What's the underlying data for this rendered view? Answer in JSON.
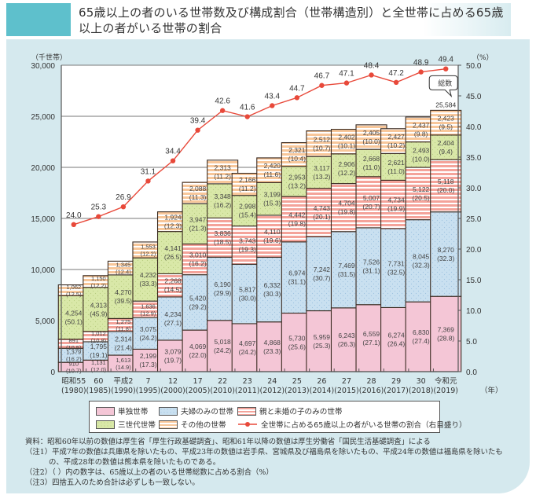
{
  "header": {
    "title_line1": "65歳以上の者のいる世帯数及び構成割合（世帯構造別）と全世帯に占める65歳",
    "title_line2": "以上の者がいる世帯の割合"
  },
  "colors": {
    "single": "#f4c6d6",
    "couple": "#c9e0f0",
    "parent_child": "#f4a39a",
    "three_gen": "#d9e8a8",
    "other": "#f8c79a",
    "line": "#e8493a",
    "panel": "#d5e9ee"
  },
  "chart_data": {
    "type": "bar",
    "stacked": true,
    "title": "65歳以上の者のいる世帯数及び構成割合（世帯構造別）と全世帯に占める65歳以上の者がいる世帯の割合",
    "ylabel": "（千世帯）",
    "y2label": "（%）",
    "xlabel": "（年）",
    "ylim": [
      0,
      30000
    ],
    "y2lim": [
      0,
      50
    ],
    "yticks": [
      "0",
      "5,000",
      "10,000",
      "15,000",
      "20,000",
      "25,000",
      "30,000"
    ],
    "y2ticks": [
      "0.0",
      "5.0",
      "10.0",
      "15.0",
      "20.0",
      "25.0",
      "30.0",
      "35.0",
      "40.0",
      "45.0",
      "50.0"
    ],
    "grid": true,
    "categories": [
      {
        "era": "昭和55",
        "year": "(1980)"
      },
      {
        "era": "60",
        "year": "(1985)"
      },
      {
        "era": "平成2",
        "year": "(1990)"
      },
      {
        "era": "7",
        "year": "(1995)"
      },
      {
        "era": "12",
        "year": "(2000)"
      },
      {
        "era": "17",
        "year": "(2005)"
      },
      {
        "era": "22",
        "year": "(2010)"
      },
      {
        "era": "23",
        "year": "(2011)"
      },
      {
        "era": "24",
        "year": "(2012)"
      },
      {
        "era": "25",
        "year": "(2013)"
      },
      {
        "era": "26",
        "year": "(2014)"
      },
      {
        "era": "27",
        "year": "(2015)"
      },
      {
        "era": "28",
        "year": "(2016)"
      },
      {
        "era": "29",
        "year": "(2017)"
      },
      {
        "era": "30",
        "year": "(2018)"
      },
      {
        "era": "令和元",
        "year": "(2019)"
      }
    ],
    "series": [
      {
        "key": "single",
        "name": "単独世帯",
        "pattern": "plain",
        "values": [
          910,
          1131,
          1613,
          2199,
          3079,
          4069,
          5018,
          4697,
          4868,
          5730,
          5959,
          6243,
          6559,
          6274,
          6830,
          7369
        ],
        "shares": [
          "10.7",
          "12.0",
          "14.9",
          "17.3",
          "19.7",
          "22.0",
          "24.2",
          "24.2",
          "23.3",
          "25.6",
          "25.3",
          "26.3",
          "27.1",
          "26.4",
          "27.4",
          "28.8"
        ]
      },
      {
        "key": "couple",
        "name": "夫婦のみの世帯",
        "pattern": "dots",
        "values": [
          1379,
          1795,
          2314,
          3075,
          4234,
          5420,
          6190,
          5817,
          6332,
          6974,
          7242,
          7469,
          7526,
          7731,
          8045,
          8270
        ],
        "shares": [
          "16.2",
          "19.1",
          "21.4",
          "24.2",
          "27.1",
          "29.2",
          "29.9",
          "30.0",
          "30.3",
          "31.1",
          "30.7",
          "31.5",
          "31.1",
          "32.5",
          "32.3",
          "32.3"
        ]
      },
      {
        "key": "parent_child",
        "name": "親と未婚の子のみの世帯",
        "pattern": "stripes",
        "values": [
          891,
          1012,
          1275,
          1636,
          2268,
          3010,
          3836,
          3743,
          4110,
          4442,
          4743,
          4704,
          5007,
          4734,
          5122,
          5118
        ],
        "shares": [
          "10.5",
          "10.8",
          "11.8",
          "12.9",
          "14.5",
          "16.2",
          "18.5",
          "19.3",
          "19.6",
          "19.8",
          "20.1",
          "19.8",
          "20.7",
          "19.9",
          "20.5",
          "20.0"
        ]
      },
      {
        "key": "three_gen",
        "name": "三世代世帯",
        "pattern": "dots",
        "values": [
          4254,
          4313,
          4270,
          4232,
          4141,
          3947,
          3348,
          2998,
          3199,
          2953,
          3117,
          2906,
          2668,
          2621,
          2493,
          2404
        ],
        "shares": [
          "50.1",
          "45.9",
          "39.5",
          "33.3",
          "26.5",
          "21.3",
          "16.2",
          "15.4",
          "15.3",
          "13.2",
          "13.2",
          "12.2",
          "11.0",
          "11.0",
          "10.0",
          "9.4"
        ]
      },
      {
        "key": "other",
        "name": "その他の世帯",
        "pattern": "stripes",
        "values": [
          1062,
          1150,
          1345,
          1553,
          1924,
          2088,
          2313,
          2166,
          2420,
          2321,
          2512,
          2402,
          2405,
          2427,
          2437,
          2423
        ],
        "shares": [
          "12.5",
          "12.2",
          "12.4",
          "12.2",
          "12.3",
          "11.3",
          "11.2",
          "11.2",
          "11.6",
          "10.4",
          "10.7",
          "10.1",
          "10.0",
          "10.2",
          "9.8",
          "9.5"
        ]
      }
    ],
    "line_series": {
      "name": "全世帯に占める65歳以上の者がいる世帯の割合（右目盛り）",
      "axis": "right",
      "values": [
        24.0,
        25.3,
        26.9,
        31.1,
        34.4,
        39.4,
        42.6,
        41.6,
        43.4,
        44.7,
        46.7,
        47.1,
        48.4,
        47.2,
        48.9,
        49.4
      ]
    },
    "annotations": {
      "callout_label": "総数",
      "total_2019": "25,584"
    },
    "legend_position": "bottom"
  },
  "legend": {
    "items": [
      {
        "key": "single",
        "label": "単独世帯"
      },
      {
        "key": "couple",
        "label": "夫婦のみの世帯"
      },
      {
        "key": "parent_child",
        "label": "親と未婚の子のみの世帯"
      },
      {
        "key": "three_gen",
        "label": "三世代世帯"
      },
      {
        "key": "other",
        "label": "その他の世帯"
      },
      {
        "key": "line",
        "label": "全世帯に占める65歳以上の者がいる世帯の割合（右目盛り）"
      }
    ]
  },
  "notes": {
    "source": "資料：昭和60年以前の数値は厚生省「厚生行政基礎調査」、昭和61年以降の数値は厚生労働省「国民生活基礎調査」による",
    "note1a": "（注1）平成7年の数値は兵庫県を除いたもの、平成23年の数値は岩手県、宮城県及び福島県を除いたもの、平成24年の数値は福島県を除いたも",
    "note1b": "の、平成28年の数値は熊本県を除いたものである。",
    "note2": "（注2）（ ）内の数字は、65歳以上の者のいる世帯総数に占める割合（%）",
    "note3": "（注3）四捨五入のため合計は必ずしも一致しない。"
  }
}
